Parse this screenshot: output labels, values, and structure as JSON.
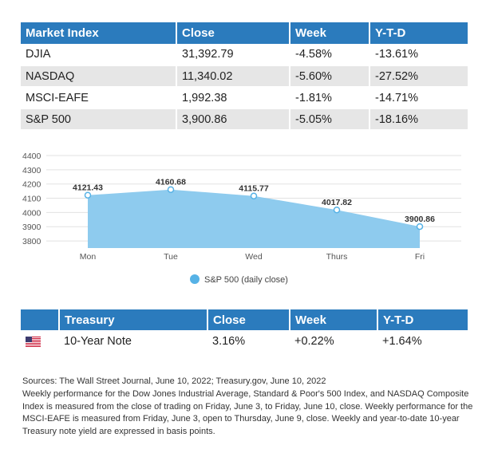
{
  "market_table": {
    "headers": [
      "Market Index",
      "Close",
      "Week",
      "Y-T-D"
    ],
    "rows": [
      [
        "DJIA",
        "31,392.79",
        "-4.58%",
        "-13.61%"
      ],
      [
        "NASDAQ",
        "11,340.02",
        "-5.60%",
        "-27.52%"
      ],
      [
        "MSCI-EAFE",
        "1,992.38",
        "-1.81%",
        "-14.71%"
      ],
      [
        "S&P 500",
        "3,900.86",
        "-5.05%",
        "-18.16%"
      ]
    ]
  },
  "chart_data": {
    "type": "area",
    "categories": [
      "Mon",
      "Tue",
      "Wed",
      "Thurs",
      "Fri"
    ],
    "series": [
      {
        "name": "S&P 500 (daily close)",
        "values": [
          4121.43,
          4160.68,
          4115.77,
          4017.82,
          3900.86
        ],
        "labels": [
          "4121.43",
          "4160.68",
          "4115.77",
          "4017.82",
          "3900.86"
        ]
      }
    ],
    "yticks": [
      "3800",
      "3900",
      "4000",
      "4100",
      "4200",
      "4300",
      "4400"
    ],
    "ylim": [
      3750,
      4400
    ],
    "legend_position": "bottom-center",
    "fill_color": "#8ecbee",
    "marker_color": "#56b2e6",
    "grid": true
  },
  "treasury_table": {
    "headers": [
      "",
      "Treasury",
      "Close",
      "Week",
      "Y-T-D"
    ],
    "row": {
      "flag_icon": "us-flag-icon",
      "name": "10-Year Note",
      "close": "3.16%",
      "week": "+0.22%",
      "ytd": "+1.64%"
    }
  },
  "notes": [
    "Sources: The Wall Street Journal, June 10, 2022; Treasury.gov, June 10, 2022",
    "Weekly performance for the Dow Jones Industrial Average, Standard & Poor's 500 Index, and NASDAQ Composite Index is measured from the close of trading on Friday, June 3, to Friday, June 10, close. Weekly performance for the MSCI-EAFE is measured from Friday, June 3, open to Thursday, June 9, close. Weekly and year-to-date 10-year Treasury note yield are expressed in basis points."
  ],
  "colors": {
    "header_bg": "#2b7bbd",
    "row_alt": "#e6e6e6"
  }
}
